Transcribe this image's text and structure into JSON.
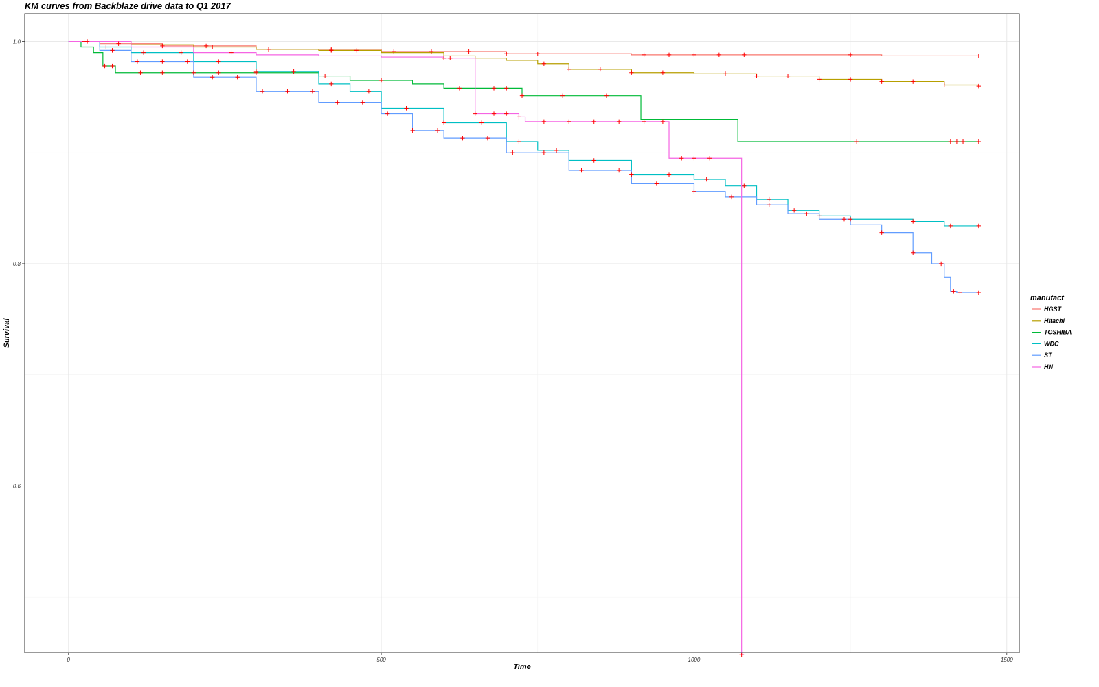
{
  "chart_data": {
    "type": "line",
    "title": "KM curves from Backblaze drive data to Q1 2017",
    "xlabel": "Time",
    "ylabel": "Survival",
    "xlim": [
      -70,
      1520
    ],
    "ylim": [
      0.45,
      1.025
    ],
    "x_ticks": [
      0,
      500,
      1000,
      1500
    ],
    "y_ticks": [
      0.6,
      0.8,
      1.0
    ],
    "x_tick_labels": [
      "0",
      "500",
      "1000",
      "1500"
    ],
    "y_tick_labels": [
      "0.6",
      "0.8",
      "1.0"
    ],
    "grid": true,
    "step": true,
    "censor_mark_color": "#ff0000",
    "legend": {
      "title": "manufact",
      "placement": "right"
    },
    "series": [
      {
        "name": "HGST",
        "color": "#F8766D",
        "x": [
          0,
          50,
          150,
          300,
          500,
          700,
          900,
          1100,
          1300,
          1455
        ],
        "y": [
          1.0,
          0.998,
          0.996,
          0.993,
          0.991,
          0.989,
          0.988,
          0.988,
          0.987,
          0.987
        ],
        "censor_x": [
          25,
          80,
          150,
          220,
          320,
          420,
          520,
          580,
          640,
          700,
          750,
          920,
          960,
          1000,
          1040,
          1080,
          1250,
          1455
        ]
      },
      {
        "name": "Hitachi",
        "color": "#B79F00",
        "x": [
          0,
          100,
          200,
          300,
          400,
          500,
          600,
          650,
          700,
          750,
          800,
          900,
          1000,
          1100,
          1200,
          1300,
          1400,
          1455
        ],
        "y": [
          1.0,
          0.997,
          0.995,
          0.993,
          0.992,
          0.99,
          0.987,
          0.985,
          0.983,
          0.98,
          0.975,
          0.972,
          0.971,
          0.969,
          0.966,
          0.964,
          0.961,
          0.96
        ],
        "censor_x": [
          230,
          320,
          420,
          460,
          760,
          800,
          850,
          900,
          950,
          1050,
          1100,
          1150,
          1200,
          1250,
          1300,
          1350,
          1400,
          1455
        ]
      },
      {
        "name": "TOSHIBA",
        "color": "#00BA38",
        "x": [
          0,
          20,
          40,
          55,
          75,
          100,
          200,
          250,
          300,
          400,
          450,
          550,
          600,
          725,
          915,
          1070,
          1455
        ],
        "y": [
          1.0,
          0.995,
          0.99,
          0.978,
          0.972,
          0.972,
          0.972,
          0.972,
          0.972,
          0.969,
          0.965,
          0.962,
          0.958,
          0.951,
          0.93,
          0.91,
          0.91
        ],
        "censor_x": [
          58,
          70,
          115,
          150,
          200,
          240,
          300,
          410,
          500,
          625,
          680,
          700,
          725,
          790,
          860,
          1260,
          1410,
          1420,
          1430,
          1455
        ]
      },
      {
        "name": "WDC",
        "color": "#00BFC4",
        "x": [
          0,
          50,
          100,
          200,
          300,
          400,
          450,
          500,
          600,
          700,
          750,
          800,
          900,
          1000,
          1050,
          1100,
          1150,
          1200,
          1250,
          1350,
          1400,
          1455
        ],
        "y": [
          1.0,
          0.995,
          0.99,
          0.982,
          0.973,
          0.962,
          0.955,
          0.94,
          0.927,
          0.91,
          0.902,
          0.893,
          0.88,
          0.876,
          0.87,
          0.858,
          0.848,
          0.843,
          0.84,
          0.838,
          0.834,
          0.834
        ],
        "censor_x": [
          60,
          120,
          180,
          240,
          300,
          360,
          420,
          480,
          540,
          600,
          660,
          720,
          780,
          840,
          900,
          960,
          1020,
          1080,
          1120,
          1160,
          1200,
          1250,
          1350,
          1410,
          1455
        ]
      },
      {
        "name": "ST",
        "color": "#619CFF",
        "x": [
          0,
          50,
          100,
          200,
          300,
          400,
          500,
          550,
          600,
          700,
          800,
          900,
          1000,
          1050,
          1100,
          1150,
          1200,
          1250,
          1300,
          1350,
          1380,
          1400,
          1410,
          1420,
          1455
        ],
        "y": [
          1.0,
          0.992,
          0.982,
          0.968,
          0.955,
          0.945,
          0.935,
          0.92,
          0.913,
          0.9,
          0.884,
          0.872,
          0.865,
          0.86,
          0.853,
          0.845,
          0.84,
          0.835,
          0.828,
          0.81,
          0.8,
          0.788,
          0.775,
          0.774,
          0.774
        ],
        "censor_x": [
          30,
          70,
          110,
          150,
          190,
          230,
          270,
          310,
          350,
          390,
          430,
          470,
          510,
          550,
          590,
          630,
          670,
          710,
          760,
          820,
          880,
          940,
          1000,
          1060,
          1120,
          1180,
          1240,
          1300,
          1350,
          1395,
          1415,
          1425,
          1455
        ]
      },
      {
        "name": "HN",
        "color": "#F564E3",
        "x": [
          0,
          100,
          200,
          250,
          300,
          400,
          500,
          600,
          650,
          700,
          710,
          720,
          730,
          790,
          850,
          950,
          960,
          980,
          1000,
          1030,
          1050,
          1075,
          1076,
          1080
        ],
        "y": [
          1.0,
          0.995,
          0.99,
          0.99,
          0.988,
          0.987,
          0.986,
          0.985,
          0.935,
          0.935,
          0.935,
          0.932,
          0.928,
          0.928,
          0.928,
          0.928,
          0.895,
          0.895,
          0.895,
          0.895,
          0.895,
          0.895,
          0.448,
          0.448
        ],
        "censor_x": [
          260,
          600,
          610,
          650,
          680,
          700,
          720,
          760,
          800,
          840,
          880,
          920,
          950,
          980,
          1000,
          1025,
          1076
        ]
      }
    ]
  }
}
